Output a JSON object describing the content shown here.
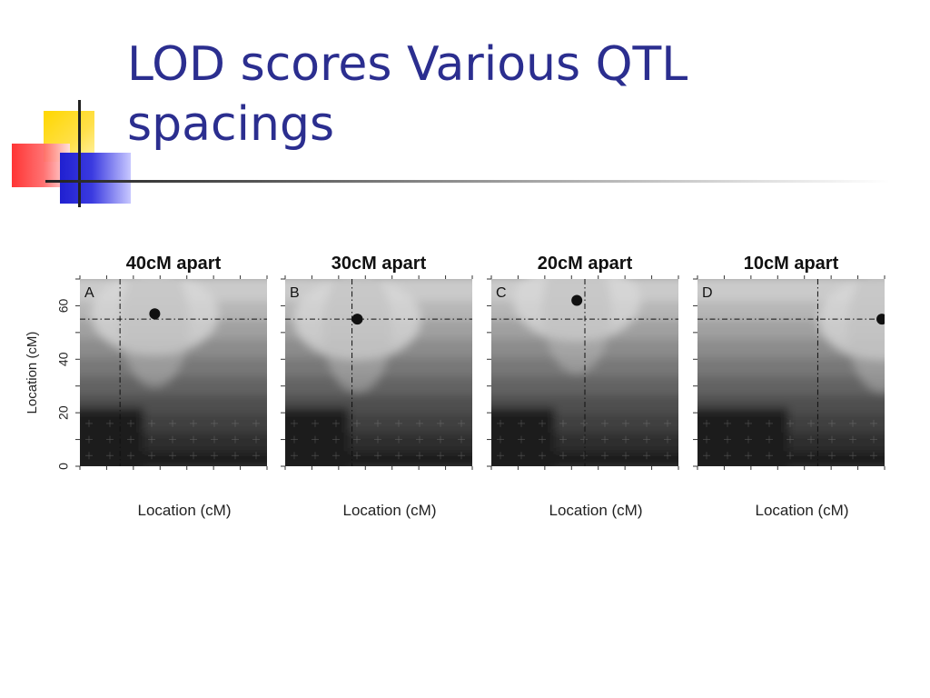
{
  "slide": {
    "title_line1": "LOD scores Various QTL",
    "title_line2": "spacings"
  },
  "colors": {
    "title": "#2b2e8f",
    "accent_yellow": "#ffd700",
    "accent_red": "#ff2a2a",
    "accent_blue": "#2020d0"
  },
  "chart_data": [
    {
      "type": "heatmap",
      "panel_letter": "A",
      "title": "40cM apart",
      "xlabel": "Location (cM)",
      "ylabel": "Location (cM)",
      "y_ticks": [
        0,
        20,
        40,
        60
      ],
      "ylim": [
        0,
        70
      ],
      "ref_lines": {
        "x": 15,
        "y": 55
      },
      "peak": {
        "x": 28,
        "y": 57
      }
    },
    {
      "type": "heatmap",
      "panel_letter": "B",
      "title": "30cM apart",
      "xlabel": "Location (cM)",
      "ylabel": "",
      "y_ticks": [
        0,
        20,
        40,
        60
      ],
      "ylim": [
        0,
        70
      ],
      "ref_lines": {
        "x": 25,
        "y": 55
      },
      "peak": {
        "x": 27,
        "y": 55
      }
    },
    {
      "type": "heatmap",
      "panel_letter": "C",
      "title": "20cM apart",
      "xlabel": "Location (cM)",
      "ylabel": "",
      "y_ticks": [
        0,
        20,
        40,
        60
      ],
      "ylim": [
        0,
        70
      ],
      "ref_lines": {
        "x": 35,
        "y": 55
      },
      "peak": {
        "x": 32,
        "y": 62
      }
    },
    {
      "type": "heatmap",
      "panel_letter": "D",
      "title": "10cM apart",
      "xlabel": "Location (cM)",
      "ylabel": "",
      "y_ticks": [
        0,
        20,
        40,
        60
      ],
      "ylim": [
        0,
        70
      ],
      "ref_lines": {
        "x": 45,
        "y": 55
      },
      "peak": {
        "x": 69,
        "y": 55
      }
    }
  ]
}
